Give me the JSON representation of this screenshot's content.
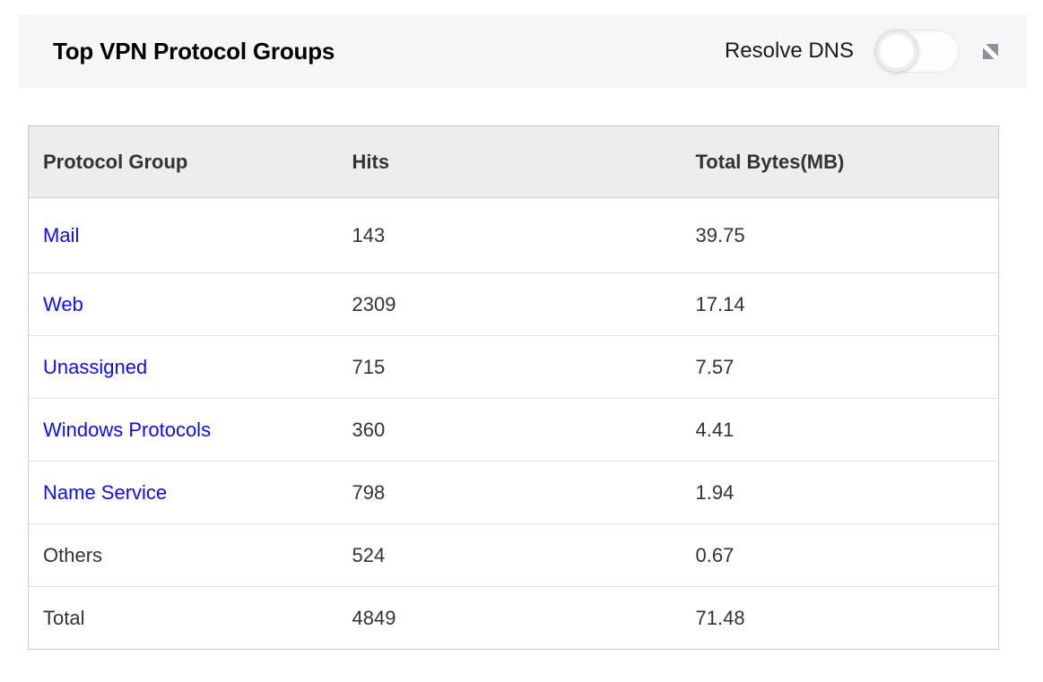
{
  "header": {
    "title": "Top VPN Protocol Groups",
    "resolve_dns_label": "Resolve DNS",
    "resolve_dns_toggle_state": "off",
    "expand_icon": "expand-collapse-icon"
  },
  "table": {
    "columns": [
      {
        "key": "protocol_group",
        "label": "Protocol Group"
      },
      {
        "key": "hits",
        "label": "Hits"
      },
      {
        "key": "total_bytes_mb",
        "label": "Total Bytes(MB)"
      }
    ],
    "rows": [
      {
        "protocol_group": "Mail",
        "hits": "143",
        "total_bytes_mb": "39.75",
        "is_link": true
      },
      {
        "protocol_group": "Web",
        "hits": "2309",
        "total_bytes_mb": "17.14",
        "is_link": true
      },
      {
        "protocol_group": "Unassigned",
        "hits": "715",
        "total_bytes_mb": "7.57",
        "is_link": true
      },
      {
        "protocol_group": "Windows Protocols",
        "hits": "360",
        "total_bytes_mb": "4.41",
        "is_link": true
      },
      {
        "protocol_group": "Name Service",
        "hits": "798",
        "total_bytes_mb": "1.94",
        "is_link": true
      },
      {
        "protocol_group": "Others",
        "hits": "524",
        "total_bytes_mb": "0.67",
        "is_link": false
      },
      {
        "protocol_group": "Total",
        "hits": "4849",
        "total_bytes_mb": "71.48",
        "is_link": false
      }
    ]
  },
  "colors": {
    "link_blue": "#0d0dee",
    "header_bar_bg": "#f5f6f7",
    "table_header_bg": "#ededed",
    "table_border": "#c9c9c9",
    "row_divider": "#e0e0e0",
    "body_text": "#333333",
    "icon_gray": "#8f9296"
  }
}
